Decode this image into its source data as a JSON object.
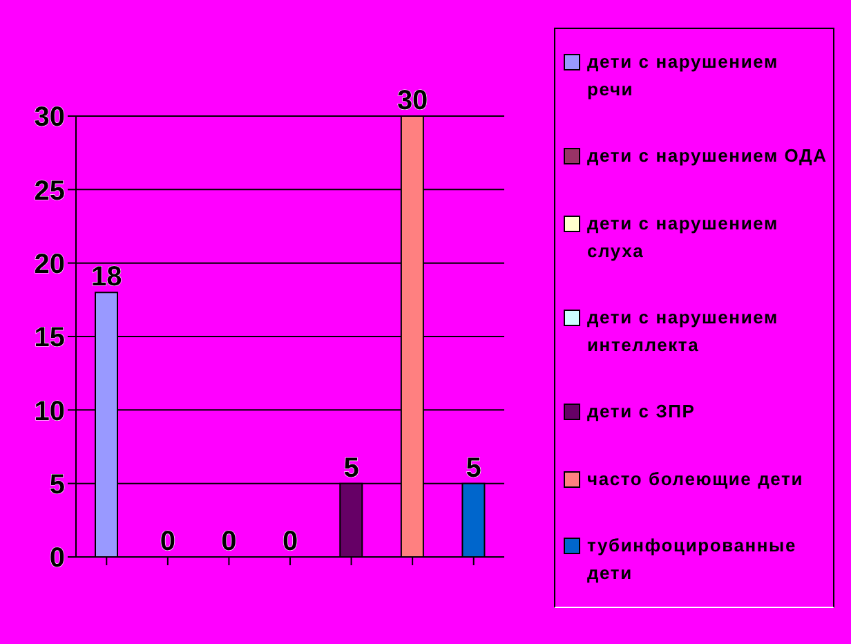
{
  "chart_data": {
    "type": "bar",
    "categories": [
      null,
      null,
      null,
      null,
      null,
      null,
      null
    ],
    "series": [
      {
        "name": "дети с нарушением речи",
        "color": "#9999ff",
        "values": [
          18,
          null,
          null,
          null,
          null,
          null,
          null
        ]
      },
      {
        "name": "дети с нарушением ОДА",
        "color": "#993366",
        "values": [
          null,
          0,
          null,
          null,
          null,
          null,
          null
        ]
      },
      {
        "name": "дети с нарушением слуха",
        "color": "#ffffcc",
        "values": [
          null,
          null,
          0,
          null,
          null,
          null,
          null
        ]
      },
      {
        "name": "дети с нарушением интеллекта",
        "color": "#ccffff",
        "values": [
          null,
          null,
          null,
          0,
          null,
          null,
          null
        ]
      },
      {
        "name": "дети с ЗПР",
        "color": "#660066",
        "values": [
          null,
          null,
          null,
          null,
          5,
          null,
          null
        ]
      },
      {
        "name": "часто болеющие дети",
        "color": "#ff8080",
        "values": [
          null,
          null,
          null,
          null,
          null,
          30,
          null
        ]
      },
      {
        "name": "тубинфоцированные дети",
        "color": "#0066cc",
        "values": [
          null,
          null,
          null,
          null,
          null,
          null,
          5
        ]
      }
    ],
    "ylim": [
      0,
      30
    ],
    "yticks": [
      0,
      5,
      10,
      15,
      20,
      25,
      30
    ],
    "grid": "y",
    "legend": "right",
    "data_labels": true
  }
}
